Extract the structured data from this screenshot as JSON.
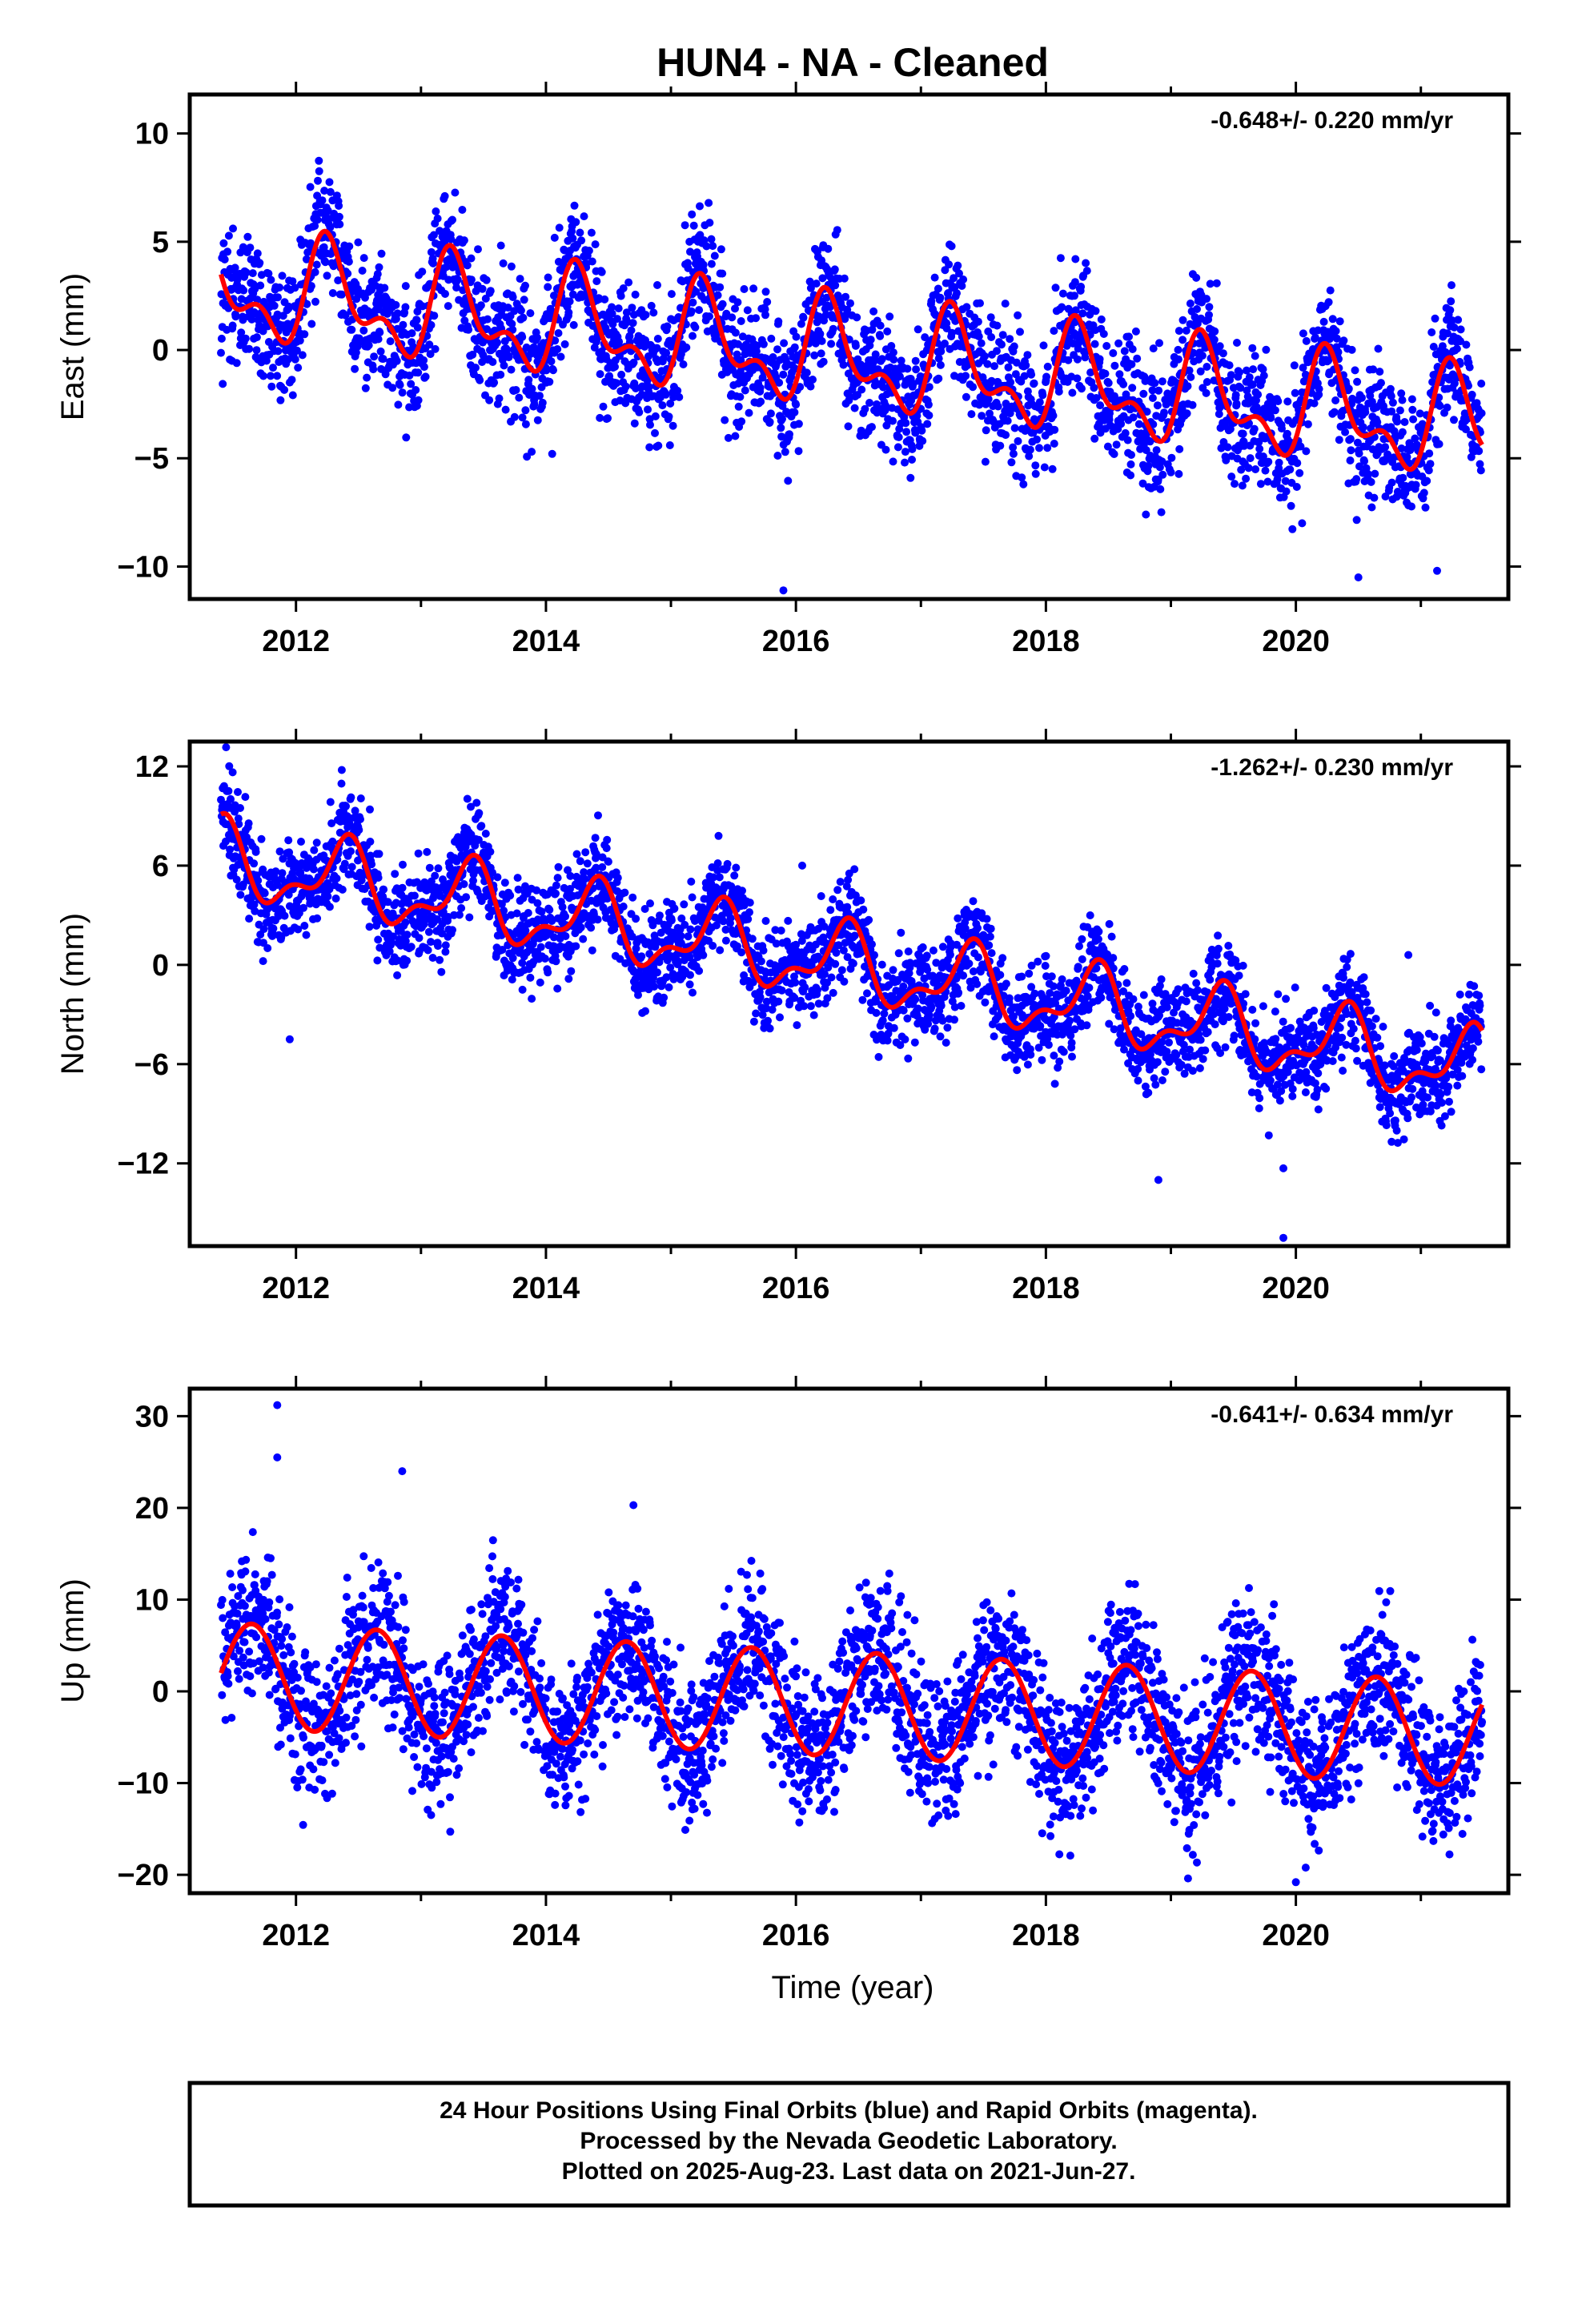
{
  "title": "HUN4  - NA - Cleaned",
  "colors": {
    "final_orbits": "#0000ff",
    "rapid_orbits": "#ff00ff",
    "model_fit": "#ff0000",
    "frame": "#000000"
  },
  "x_axis": {
    "label": "Time (year)",
    "range": [
      2011.15,
      2021.7
    ],
    "ticks": [
      2012,
      2014,
      2016,
      2018,
      2020
    ],
    "tick_labels": [
      "2012",
      "2014",
      "2016",
      "2018",
      "2020"
    ]
  },
  "footer": {
    "line1": "24 Hour Positions Using Final Orbits (blue) and Rapid Orbits (magenta).",
    "line2": "Processed by the Nevada Geodetic Laboratory.",
    "line3": "Plotted on 2025-Aug-23. Last data on 2021-Jun-27."
  },
  "chart_data": [
    {
      "type": "scatter",
      "ylabel": "East (mm)",
      "ylim": [
        -11.5,
        11.8
      ],
      "yticks": [
        -10,
        -5,
        0,
        5,
        10
      ],
      "ytick_labels": [
        "−10",
        "−5",
        "0",
        "5",
        "10"
      ],
      "rate": "-0.648+/- 0.220 mm/yr",
      "model": {
        "trend": -0.648,
        "t0": 2016.4,
        "offset": -0.35,
        "ann_cos": -0.3,
        "ann_sin": 2.0,
        "semi_cos": -1.1,
        "semi_sin": 0.5,
        "noise_sd": 1.5
      },
      "data_range": [
        2011.4,
        2021.49
      ],
      "outliers": [
        [
          2015.9,
          -11.1
        ],
        [
          2021.13,
          -10.2
        ],
        [
          2020.5,
          -10.5
        ],
        [
          2020.05,
          -8.0
        ],
        [
          2014.05,
          -4.8
        ],
        [
          2018.8,
          -7.6
        ],
        [
          2011.95,
          -1.5
        ]
      ]
    },
    {
      "type": "scatter",
      "ylabel": "North (mm)",
      "ylim": [
        -17,
        13.5
      ],
      "yticks": [
        -12,
        -6,
        0,
        6,
        12
      ],
      "ytick_labels": [
        "−12",
        "−6",
        "0",
        "6",
        "12"
      ],
      "rate": "-1.262+/- 0.230 mm/yr",
      "model": {
        "trend": -1.262,
        "t0": 2016.4,
        "offset": 0.0,
        "ann_cos": -1.5,
        "ann_sin": 1.3,
        "semi_cos": 0.8,
        "semi_sin": -0.6,
        "noise_sd": 1.5
      },
      "data_range": [
        2011.4,
        2021.49
      ],
      "outliers": [
        [
          2019.9,
          -16.5
        ],
        [
          2018.9,
          -13.0
        ],
        [
          2019.9,
          -12.3
        ],
        [
          2011.95,
          -4.5
        ],
        [
          2020.9,
          0.6
        ],
        [
          2016.05,
          6.0
        ]
      ]
    },
    {
      "type": "scatter",
      "ylabel": "Up (mm)",
      "ylim": [
        -22,
        33
      ],
      "yticks": [
        -20,
        -10,
        0,
        10,
        20,
        30
      ],
      "ytick_labels": [
        "−20",
        "−10",
        "0",
        "10",
        "20",
        "30"
      ],
      "rate": "-0.641+/- 0.634 mm/yr",
      "model": {
        "trend": -0.641,
        "t0": 2016.4,
        "offset": -1.4,
        "ann_cos": -3.5,
        "ann_sin": -4.5,
        "semi_cos": 0.0,
        "semi_sin": 0.0,
        "noise_sd": 4.0
      },
      "data_range": [
        2011.4,
        2021.49
      ],
      "outliers": [
        [
          2011.85,
          31.2
        ],
        [
          2011.85,
          25.5
        ],
        [
          2012.85,
          24.0
        ],
        [
          2014.7,
          20.3
        ],
        [
          2020.0,
          -20.8
        ]
      ]
    }
  ]
}
